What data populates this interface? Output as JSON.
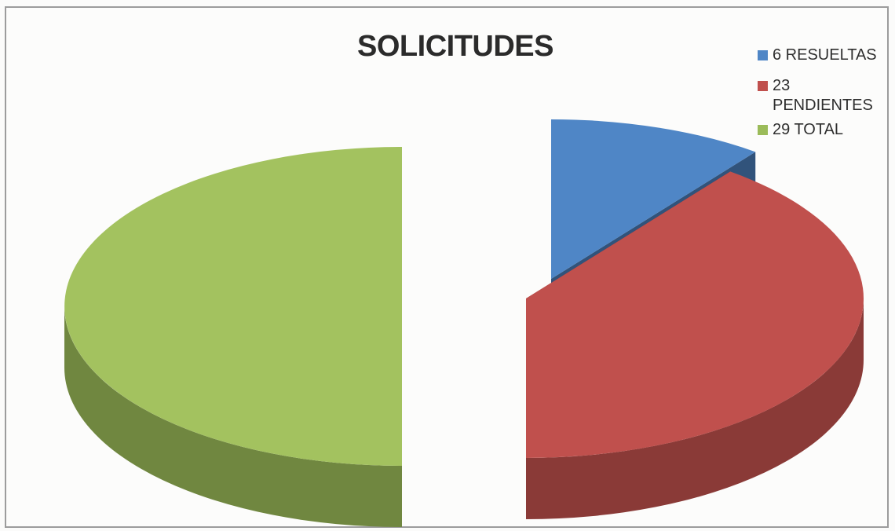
{
  "chart_data": {
    "type": "pie",
    "title": "SOLICITUDES",
    "categories": [
      "6 RESUELTAS",
      "23 PENDIENTES",
      "29 TOTAL"
    ],
    "values": [
      6,
      23,
      29
    ],
    "colors": [
      "#4f86c6",
      "#c0504d",
      "#9bbb59"
    ],
    "legend_position": "top-right",
    "style": "3d-exploded"
  }
}
